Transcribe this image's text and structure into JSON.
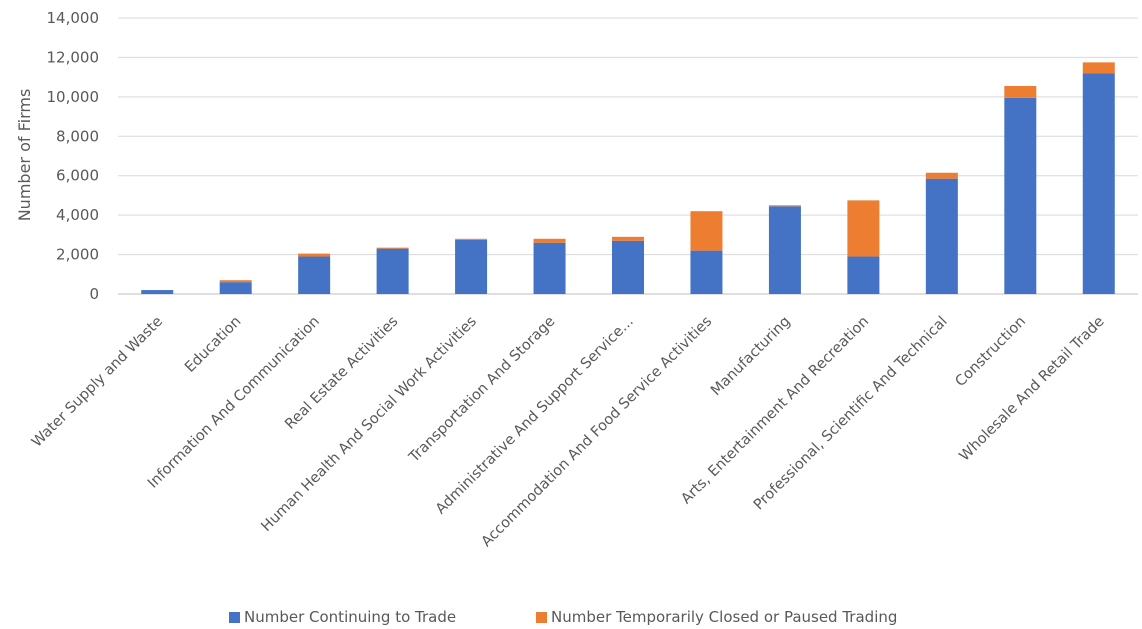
{
  "chart_data": {
    "type": "bar",
    "stacked": true,
    "title": "",
    "xlabel": "",
    "ylabel": "Number of Firms",
    "ylim": [
      0,
      14000
    ],
    "yticks": [
      0,
      2000,
      4000,
      6000,
      8000,
      10000,
      12000,
      14000
    ],
    "ytick_labels": [
      "0",
      "2,000",
      "4,000",
      "6,000",
      "8,000",
      "10,000",
      "12,000",
      "14,000"
    ],
    "grid": true,
    "legend_position": "bottom",
    "categories": [
      "Water Supply and Waste",
      "Education",
      "Information And Communication",
      "Real Estate Activities",
      "Human Health And Social Work Activities",
      "Transportation And Storage",
      "Administrative And Support Service...",
      "Accommodation And Food Service Activities",
      "Manufacturing",
      "Arts, Entertainment And Recreation",
      "Professional, Scientific And Technical",
      "Construction",
      "Wholesale And Retail Trade"
    ],
    "series": [
      {
        "name": "Number Continuing to Trade",
        "color": "#4472c4",
        "values": [
          200,
          600,
          1900,
          2300,
          2750,
          2600,
          2700,
          2200,
          4450,
          1900,
          5850,
          9950,
          11200
        ]
      },
      {
        "name": "Number Temporarily Closed or Paused Trading",
        "color": "#ed7d31",
        "values": [
          0,
          100,
          150,
          50,
          50,
          200,
          200,
          2000,
          50,
          2850,
          300,
          600,
          550
        ]
      }
    ]
  }
}
